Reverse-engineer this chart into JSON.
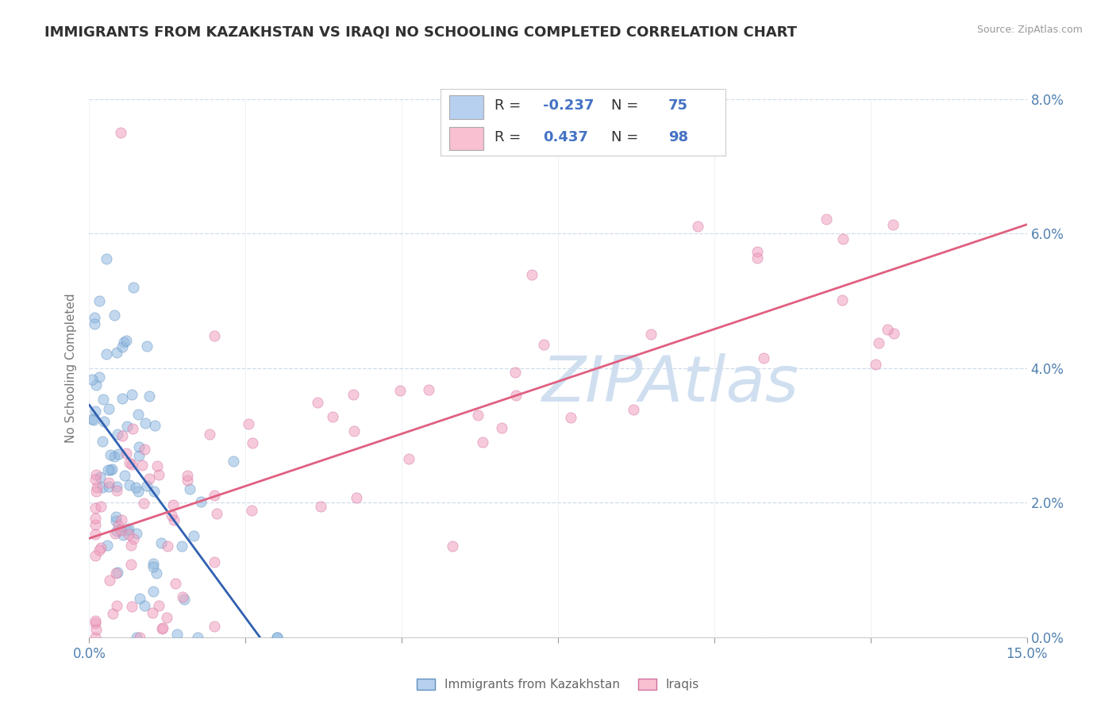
{
  "title": "IMMIGRANTS FROM KAZAKHSTAN VS IRAQI NO SCHOOLING COMPLETED CORRELATION CHART",
  "source": "Source: ZipAtlas.com",
  "ylabel": "No Schooling Completed",
  "xlim": [
    0.0,
    0.15
  ],
  "ylim": [
    0.0,
    0.08
  ],
  "xtick_positions": [
    0.0,
    0.025,
    0.05,
    0.075,
    0.1,
    0.125,
    0.15
  ],
  "xtick_labels_show": {
    "0.0": "0.0%",
    "0.15": "15.0%"
  },
  "ytick_positions": [
    0.0,
    0.02,
    0.04,
    0.06,
    0.08
  ],
  "ytick_labels": [
    "0.0%",
    "2.0%",
    "4.0%",
    "6.0%",
    "8.0%"
  ],
  "blue_color": "#90b8e0",
  "pink_color": "#f0a0be",
  "blue_edge_color": "#6090c0",
  "pink_edge_color": "#d070a0",
  "blue_trend_color": "#3060b0",
  "pink_trend_color": "#e06080",
  "watermark_text": "ZIPAtlas",
  "watermark_color": "#d0dff0",
  "background_color": "#ffffff",
  "grid_color": "#d0dce8",
  "title_color": "#303030",
  "axis_label_color": "#5080b0",
  "right_axis_color": "#5080b0",
  "legend_box_color_blue": "#b8d0f0",
  "legend_box_color_pink": "#f8c0d0",
  "legend_r1": "-0.237",
  "legend_n1": "75",
  "legend_r2": "0.437",
  "legend_n2": "98",
  "marker_size": 90,
  "marker_alpha": 0.55,
  "seed": 123
}
